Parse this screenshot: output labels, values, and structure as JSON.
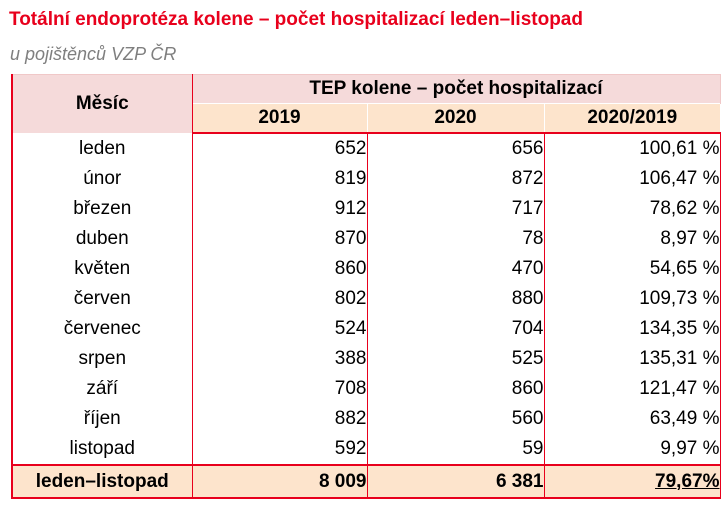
{
  "title": "Totální endoprotéza kolene – počet hospitalizací leden–listopad",
  "subtitle": "u pojištěnců VZP ČR",
  "chart_data": {
    "type": "table",
    "header": {
      "month_label": "Měsíc",
      "group_label": "TEP kolene – počet hospitalizací",
      "columns": [
        "2019",
        "2020",
        "2020/2019"
      ]
    },
    "rows": [
      {
        "month": "leden",
        "v2019": "652",
        "v2020": "656",
        "ratio": "100,61 %"
      },
      {
        "month": "únor",
        "v2019": "819",
        "v2020": "872",
        "ratio": "106,47 %"
      },
      {
        "month": "březen",
        "v2019": "912",
        "v2020": "717",
        "ratio": "78,62 %"
      },
      {
        "month": "duben",
        "v2019": "870",
        "v2020": "78",
        "ratio": "8,97 %"
      },
      {
        "month": "květen",
        "v2019": "860",
        "v2020": "470",
        "ratio": "54,65 %"
      },
      {
        "month": "červen",
        "v2019": "802",
        "v2020": "880",
        "ratio": "109,73 %"
      },
      {
        "month": "červenec",
        "v2019": "524",
        "v2020": "704",
        "ratio": "134,35 %"
      },
      {
        "month": "srpen",
        "v2019": "388",
        "v2020": "525",
        "ratio": "135,31 %"
      },
      {
        "month": "září",
        "v2019": "708",
        "v2020": "860",
        "ratio": "121,47 %"
      },
      {
        "month": "říjen",
        "v2019": "882",
        "v2020": "560",
        "ratio": "63,49 %"
      },
      {
        "month": "listopad",
        "v2019": "592",
        "v2020": "59",
        "ratio": "9,97 %"
      }
    ],
    "total": {
      "month": "leden–listopad",
      "v2019": "8 009",
      "v2020": "6 381",
      "ratio": "79,67%"
    }
  },
  "colors": {
    "title": "#e8001c",
    "border": "#e8001c",
    "header_pink": "#f5dada",
    "header_peach": "#fde4cc",
    "subtitle": "#7f7f7f"
  }
}
